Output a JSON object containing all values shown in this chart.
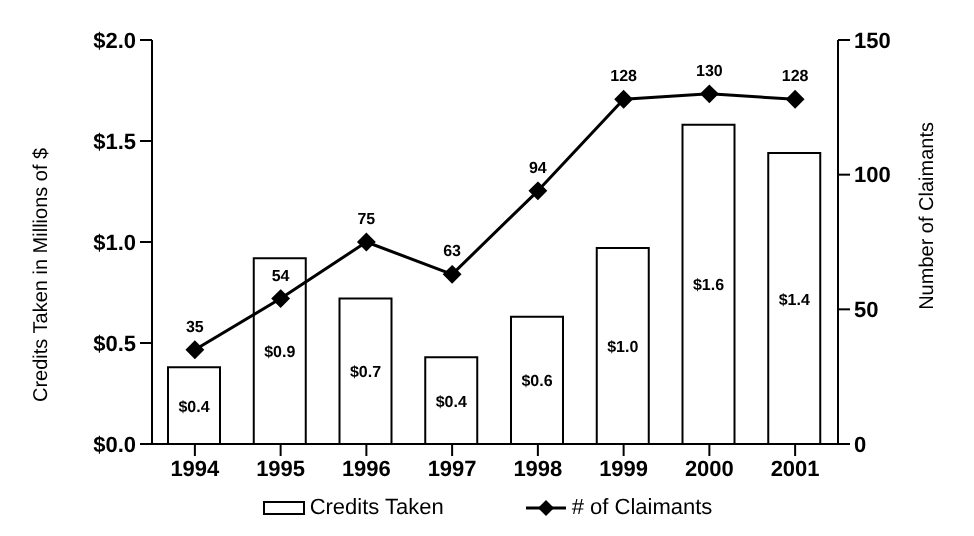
{
  "chart_data": {
    "type": "bar",
    "categories": [
      "1994",
      "1995",
      "1996",
      "1997",
      "1998",
      "1999",
      "2000",
      "2001"
    ],
    "ylabel": "Credits Taken in Millions of $",
    "y2label": "Number of Claimants",
    "ylim": [
      0,
      2
    ],
    "yticks": [
      {
        "value": 0,
        "label": "$0.0"
      },
      {
        "value": 0.5,
        "label": "$0.5"
      },
      {
        "value": 1,
        "label": "$1.0"
      },
      {
        "value": 1.5,
        "label": "$1.5"
      },
      {
        "value": 2,
        "label": "$2.0"
      }
    ],
    "y2lim": [
      0,
      150
    ],
    "y2ticks": [
      0,
      50,
      100,
      150
    ],
    "grid": false,
    "legend": "bottom",
    "series": [
      {
        "name": "Credits Taken",
        "color": "#ffffff",
        "values": [
          0.38,
          0.92,
          0.72,
          0.43,
          0.63,
          0.97,
          1.58,
          1.44
        ],
        "value_labels": [
          "$0.4",
          "$0.9",
          "$0.7",
          "$0.4",
          "$0.6",
          "$1.0",
          "$1.6",
          "$1.4"
        ]
      },
      {
        "name": "# of Claimants",
        "type": "line",
        "axis": "y2",
        "color": "#000000",
        "marker": "diamond",
        "values": [
          35,
          54,
          75,
          63,
          94,
          128,
          130,
          128
        ],
        "value_labels": [
          "35",
          "54",
          "75",
          "63",
          "94",
          "128",
          "130",
          "128"
        ]
      }
    ]
  }
}
